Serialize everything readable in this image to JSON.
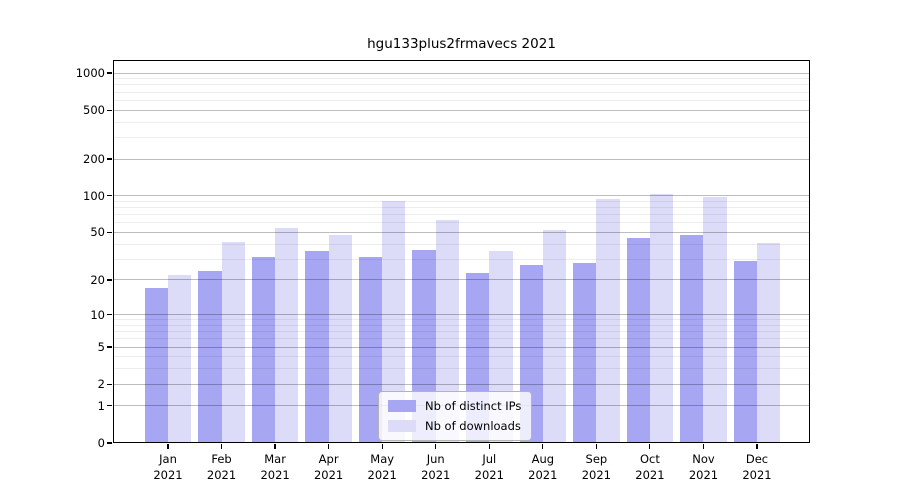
{
  "title": "hgu133plus2frmavecs 2021",
  "chart_data": {
    "type": "bar",
    "title": "hgu133plus2frmavecs 2021",
    "scale": "log1p",
    "grid": true,
    "legend_position": "inside lower center",
    "ylim": [
      0,
      1276
    ],
    "y_major_ticks": [
      0,
      1,
      2,
      5,
      10,
      20,
      50,
      100,
      200,
      500,
      1000
    ],
    "categories": [
      {
        "month": "Jan",
        "year": "2021"
      },
      {
        "month": "Feb",
        "year": "2021"
      },
      {
        "month": "Mar",
        "year": "2021"
      },
      {
        "month": "Apr",
        "year": "2021"
      },
      {
        "month": "May",
        "year": "2021"
      },
      {
        "month": "Jun",
        "year": "2021"
      },
      {
        "month": "Jul",
        "year": "2021"
      },
      {
        "month": "Aug",
        "year": "2021"
      },
      {
        "month": "Sep",
        "year": "2021"
      },
      {
        "month": "Oct",
        "year": "2021"
      },
      {
        "month": "Nov",
        "year": "2021"
      },
      {
        "month": "Dec",
        "year": "2021"
      }
    ],
    "series": [
      {
        "name": "Nb of distinct IPs",
        "color": "#a6a6f2",
        "values": [
          17,
          24,
          31,
          35,
          31,
          36,
          23,
          27,
          28,
          45,
          48,
          29
        ]
      },
      {
        "name": "Nb of downloads",
        "color": "#dcdcf9",
        "values": [
          22,
          42,
          54,
          48,
          90,
          63,
          35,
          52,
          94,
          103,
          97,
          41
        ]
      }
    ]
  },
  "colors": {
    "axis": "#000000",
    "grid_major": "#bfbfbf",
    "grid_minor": "#efefef",
    "legend_border": "#b3b3b3",
    "background": "#ffffff"
  }
}
